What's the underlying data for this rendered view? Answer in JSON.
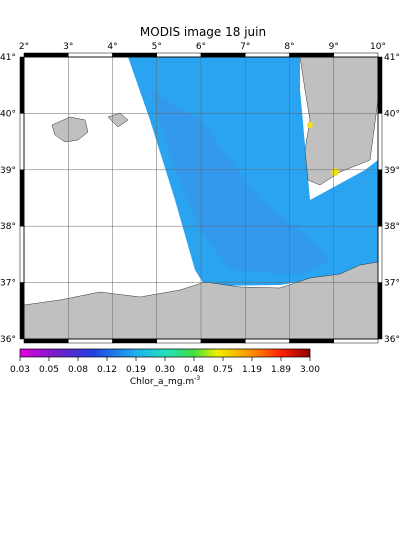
{
  "title": "MODIS image 18 juin",
  "longitude_labels": [
    "2°",
    "3°",
    "4°",
    "5°",
    "6°",
    "7°",
    "8°",
    "9°",
    "10°"
  ],
  "latitude_labels": [
    "41°",
    "40°",
    "39°",
    "38°",
    "37°",
    "36°"
  ],
  "colorbar": {
    "labels": [
      "0.03",
      "0.05",
      "0.08",
      "0.12",
      "0.19",
      "0.30",
      "0.48",
      "0.75",
      "1.19",
      "1.89",
      "3.00"
    ],
    "unit": {
      "text": "Chlor_a_mg.m",
      "superscript": "-3"
    }
  }
}
